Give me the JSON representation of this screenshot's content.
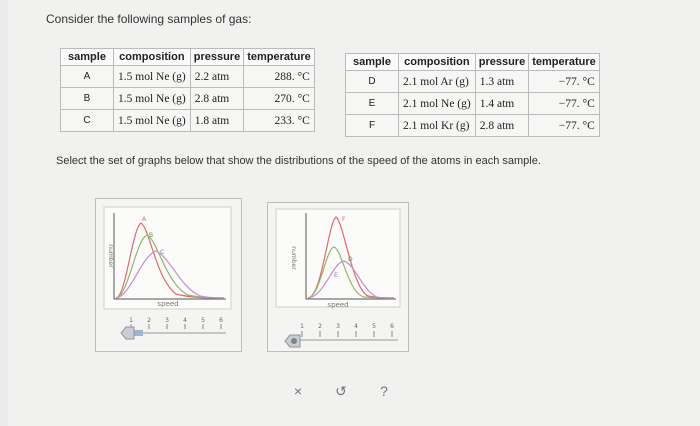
{
  "prompt": "Consider the following samples of gas:",
  "instruction": "Select the set of graphs below that show the distributions of the speed of the atoms in each sample.",
  "table_headers": [
    "sample",
    "composition",
    "pressure",
    "temperature"
  ],
  "samples_left": [
    {
      "sample": "A",
      "composition": "1.5 mol Ne (g)",
      "pressure": "2.2 atm",
      "temperature": "288. °C"
    },
    {
      "sample": "B",
      "composition": "1.5 mol Ne (g)",
      "pressure": "2.8 atm",
      "temperature": "270. °C"
    },
    {
      "sample": "C",
      "composition": "1.5 mol Ne (g)",
      "pressure": "1.8 atm",
      "temperature": "233. °C"
    }
  ],
  "samples_right": [
    {
      "sample": "D",
      "composition": "2.1 mol Ar (g)",
      "pressure": "1.3 atm",
      "temperature": "−77. °C"
    },
    {
      "sample": "E",
      "composition": "2.1 mol Ne (g)",
      "pressure": "1.4 atm",
      "temperature": "−77. °C"
    },
    {
      "sample": "F",
      "composition": "2.1 mol Kr (g)",
      "pressure": "2.8 atm",
      "temperature": "−77. °C"
    }
  ],
  "graph1": {
    "ylabel": "number",
    "xlabel": "speed",
    "curve_labels": [
      "A",
      "B",
      "C"
    ],
    "slider_ticks": [
      "1",
      "2",
      "3",
      "4",
      "5",
      "6"
    ],
    "colors": [
      "#e06a6a",
      "#8fb86a",
      "#c48fd0"
    ]
  },
  "graph2": {
    "ylabel": "number",
    "xlabel": "speed",
    "curve_labels": [
      "F",
      "D",
      "E"
    ],
    "slider_ticks": [
      "1",
      "2",
      "3",
      "4",
      "5",
      "6"
    ],
    "colors": [
      "#e06a6a",
      "#8fb86a",
      "#c48fd0"
    ]
  },
  "actions": {
    "clear": "×",
    "undo": "↺",
    "help": "?"
  }
}
